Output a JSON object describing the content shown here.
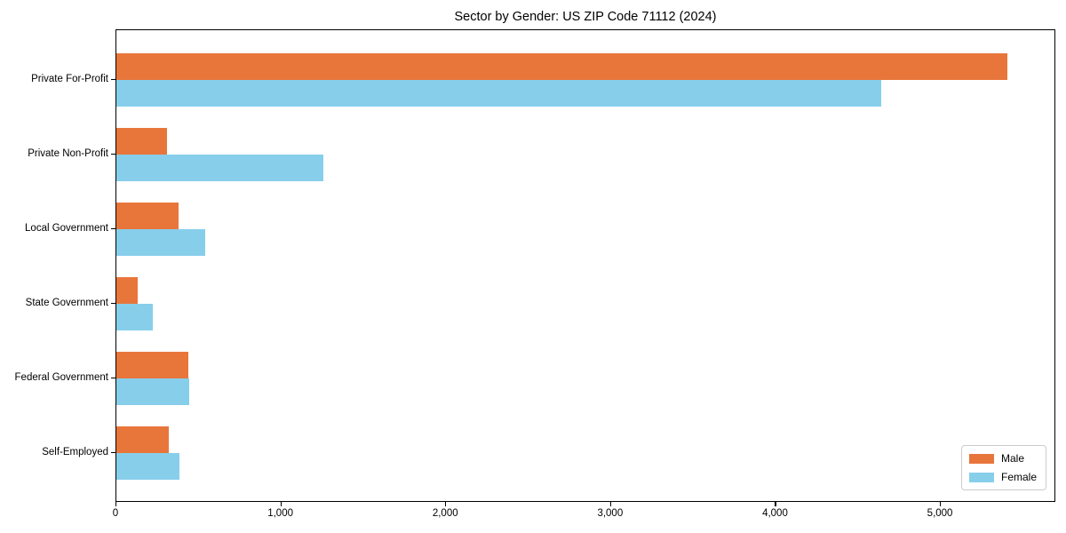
{
  "title": "Sector by Gender: US ZIP Code 71112 (2024)",
  "chart_data": {
    "type": "bar",
    "orientation": "horizontal",
    "title": "Sector by Gender: US ZIP Code 71112 (2024)",
    "categories": [
      "Private For-Profit",
      "Private Non-Profit",
      "Local Government",
      "State Government",
      "Federal Government",
      "Self-Employed"
    ],
    "series": [
      {
        "name": "Male",
        "color": "#e8763b",
        "values": [
          5415,
          310,
          380,
          130,
          435,
          320
        ]
      },
      {
        "name": "Female",
        "color": "#87ceeb",
        "values": [
          4650,
          1260,
          540,
          220,
          440,
          385
        ]
      }
    ],
    "xlabel": "",
    "ylabel": "",
    "xlim": [
      0,
      5700
    ],
    "xticks": [
      {
        "value": 0,
        "label": "0"
      },
      {
        "value": 1000,
        "label": "1,000"
      },
      {
        "value": 2000,
        "label": "2,000"
      },
      {
        "value": 3000,
        "label": "3,000"
      },
      {
        "value": 4000,
        "label": "4,000"
      },
      {
        "value": 5000,
        "label": "5,000"
      }
    ],
    "grid": false,
    "legend_position": "lower right",
    "background_color": "#ffffff",
    "axis_color": "#000000"
  }
}
